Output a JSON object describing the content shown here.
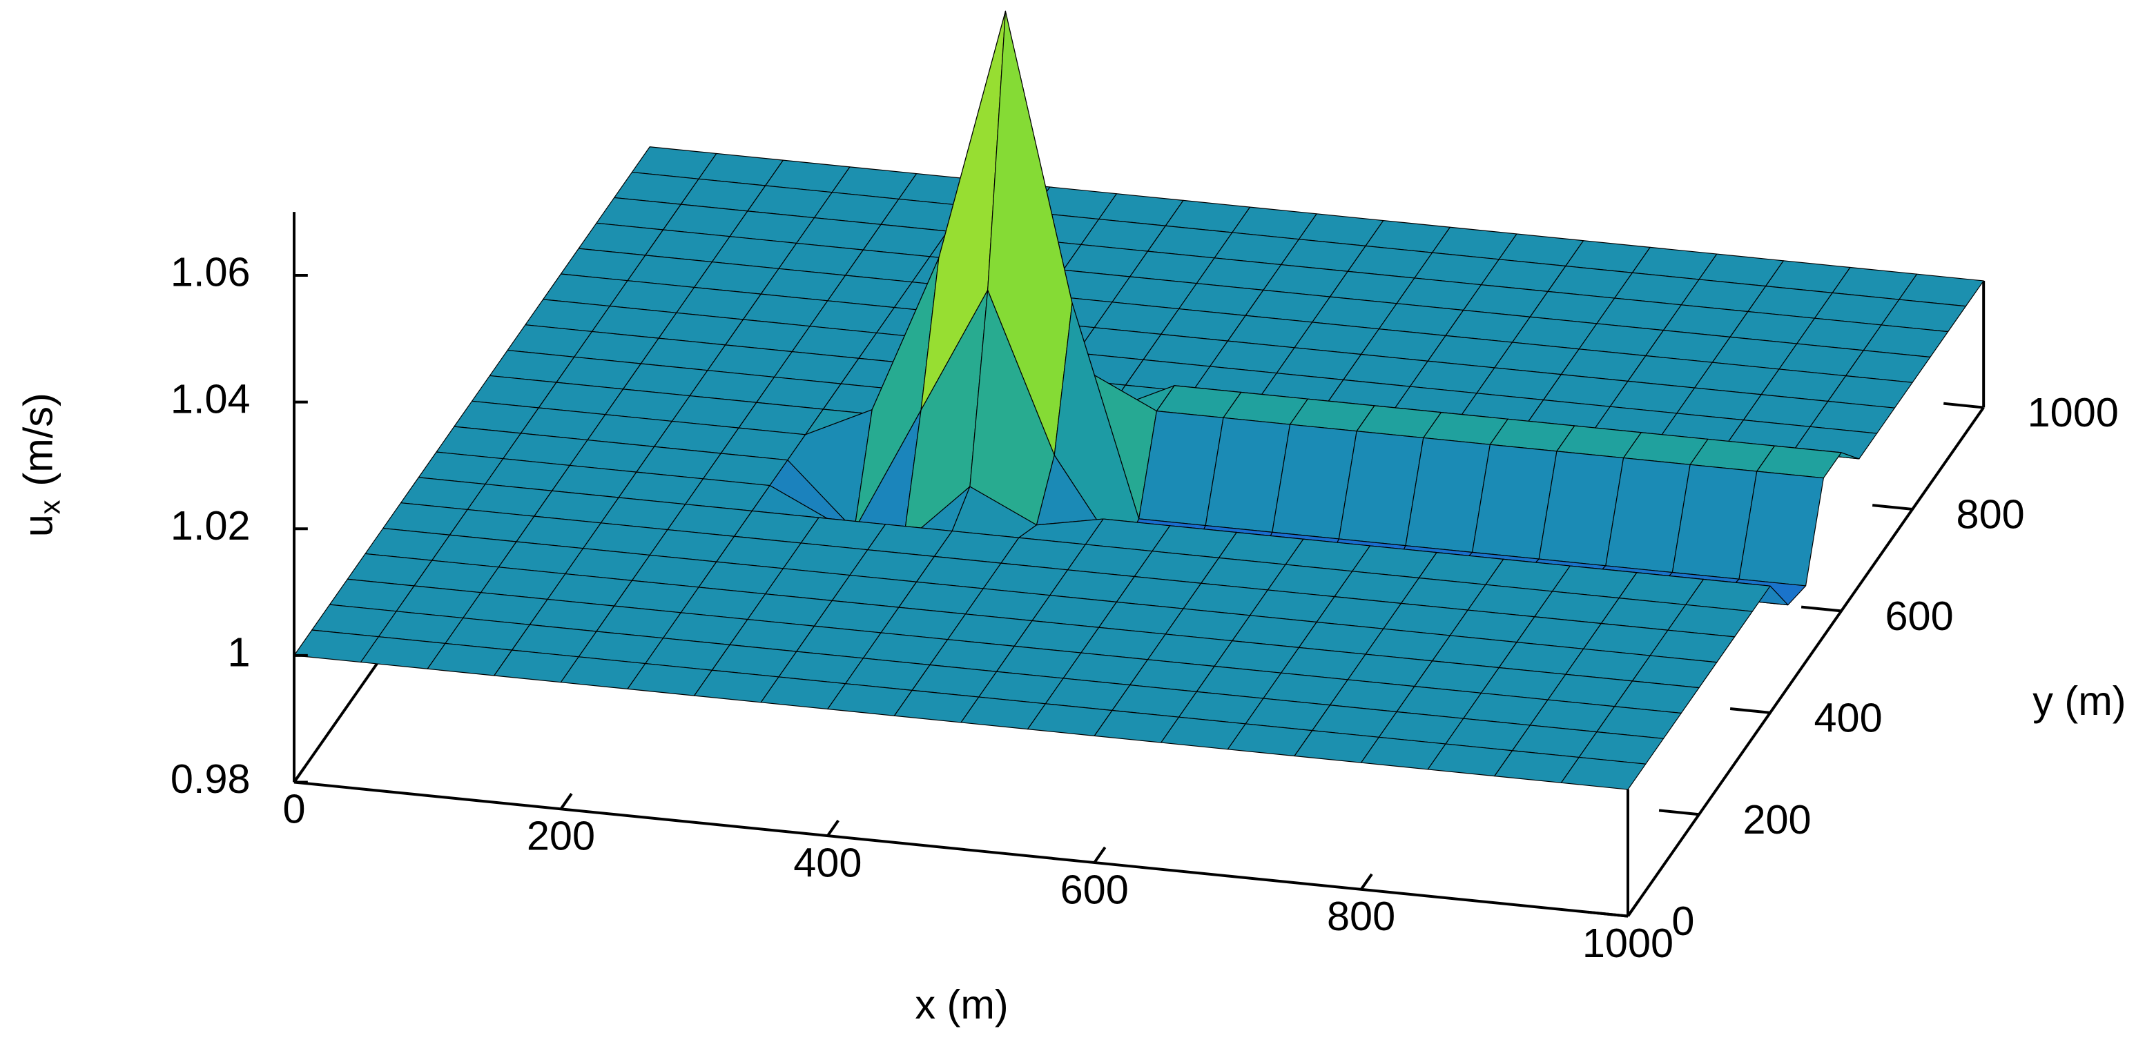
{
  "chart_data": {
    "type": "surface",
    "xlabel": "x (m)",
    "ylabel": "y (m)",
    "zlabel": [
      "u",
      "x",
      "(m/s)"
    ],
    "x": [
      0,
      50,
      100,
      150,
      200,
      250,
      300,
      350,
      400,
      450,
      500,
      550,
      600,
      650,
      700,
      750,
      800,
      850,
      900,
      950,
      1000
    ],
    "y": [
      0,
      50,
      100,
      150,
      200,
      250,
      300,
      350,
      400,
      450,
      500,
      550,
      600,
      650,
      700,
      750,
      800,
      850,
      900,
      950,
      1000
    ],
    "z": [
      [
        1,
        1,
        1,
        1,
        1,
        1,
        1,
        1,
        1,
        1,
        1,
        1,
        1,
        1,
        1,
        1,
        1,
        1,
        1,
        1,
        1
      ],
      [
        1,
        1,
        1,
        1,
        1,
        1,
        1,
        1,
        1,
        1,
        1,
        1,
        1,
        1,
        1,
        1,
        1,
        1,
        1,
        1,
        1
      ],
      [
        1,
        1,
        1,
        1,
        1,
        1,
        1,
        1,
        1,
        1,
        1,
        1,
        1,
        1,
        1,
        1,
        1,
        1,
        1,
        1,
        1
      ],
      [
        1,
        1,
        1,
        1,
        1,
        1,
        1,
        1,
        1,
        1,
        1,
        1,
        1,
        1,
        1,
        1,
        1,
        1,
        1,
        1,
        1
      ],
      [
        1,
        1,
        1,
        1,
        1,
        1,
        1,
        1,
        1,
        1,
        1,
        1,
        1,
        1,
        1,
        1,
        1,
        1,
        1,
        1,
        1
      ],
      [
        1,
        1,
        1,
        1,
        1,
        1,
        1,
        1,
        1,
        1,
        1,
        1,
        1,
        1,
        1,
        1,
        1,
        1,
        1,
        1,
        1
      ],
      [
        1,
        1,
        1,
        1,
        1,
        1,
        1,
        1,
        1,
        1,
        1,
        1,
        1,
        1,
        1,
        1,
        1,
        1,
        1,
        1,
        1
      ],
      [
        1,
        1,
        1,
        1,
        1,
        1,
        1,
        1,
        1,
        1,
        1,
        1,
        1,
        1,
        1,
        1,
        1,
        1,
        1,
        1,
        1
      ],
      [
        1,
        1,
        1,
        1,
        1,
        1,
        0.995,
        0.993,
        1.003,
        0.998,
        1,
        1,
        1,
        1,
        1,
        1,
        1,
        1,
        1,
        1,
        1
      ],
      [
        1,
        1,
        1,
        1,
        1,
        1,
        0.99,
        1.01,
        1.03,
        1.005,
        0.99,
        0.99,
        0.99,
        0.99,
        0.99,
        0.993,
        0.993,
        0.993,
        0.993,
        0.993,
        0.993
      ],
      [
        1,
        1,
        1,
        1,
        1,
        1,
        1.005,
        1.03,
        1.07,
        1.025,
        0.992,
        0.992,
        0.992,
        0.992,
        0.992,
        0.992,
        0.992,
        0.992,
        0.992,
        0.992,
        0.992
      ],
      [
        1,
        1,
        1,
        1,
        1,
        1,
        1,
        1.012,
        1.03,
        1.01,
        1.005,
        1.005,
        1.005,
        1.005,
        1.005,
        1.005,
        1.005,
        1.005,
        1.005,
        1.005,
        1.005
      ],
      [
        1,
        1,
        1,
        1,
        1,
        1,
        1,
        1,
        1.005,
        1,
        1.005,
        1.005,
        1.005,
        1.005,
        1.005,
        1.005,
        1.005,
        1.005,
        1.005,
        1.005,
        1.005
      ],
      [
        1,
        1,
        1,
        1,
        1,
        1,
        1,
        1,
        1,
        1,
        1,
        1,
        1,
        1,
        1,
        1,
        1,
        1,
        1,
        1,
        1
      ],
      [
        1,
        1,
        1,
        1,
        1,
        1,
        1,
        1,
        1,
        1,
        1,
        1,
        1,
        1,
        1,
        1,
        1,
        1,
        1,
        1,
        1
      ],
      [
        1,
        1,
        1,
        1,
        1,
        1,
        1,
        1,
        1,
        1,
        1,
        1,
        1,
        1,
        1,
        1,
        1,
        1,
        1,
        1,
        1
      ],
      [
        1,
        1,
        1,
        1,
        1,
        1,
        1,
        1,
        1,
        1,
        1,
        1,
        1,
        1,
        1,
        1,
        1,
        1,
        1,
        1,
        1
      ],
      [
        1,
        1,
        1,
        1,
        1,
        1,
        1,
        1,
        1,
        1,
        1,
        1,
        1,
        1,
        1,
        1,
        1,
        1,
        1,
        1,
        1
      ],
      [
        1,
        1,
        1,
        1,
        1,
        1,
        1,
        1,
        1,
        1,
        1,
        1,
        1,
        1,
        1,
        1,
        1,
        1,
        1,
        1,
        1
      ],
      [
        1,
        1,
        1,
        1,
        1,
        1,
        1,
        1,
        1,
        1,
        1,
        1,
        1,
        1,
        1,
        1,
        1,
        1,
        1,
        1,
        1
      ],
      [
        1,
        1,
        1,
        1,
        1,
        1,
        1,
        1,
        1,
        1,
        1,
        1,
        1,
        1,
        1,
        1,
        1,
        1,
        1,
        1,
        1
      ]
    ],
    "xlim": [
      0,
      1000
    ],
    "ylim": [
      0,
      1000
    ],
    "zlim": [
      0.98,
      1.07
    ],
    "xticks": [
      0,
      200,
      400,
      600,
      800,
      1000
    ],
    "yticks": [
      0,
      200,
      400,
      600,
      800,
      1000
    ],
    "zticks": [
      0.98,
      1,
      1.02,
      1.04,
      1.06
    ],
    "colormap": [
      "#1030e0",
      "#1a6fd0",
      "#1c9aa6",
      "#30b880",
      "#50d040",
      "#a0e030",
      "#f0e020",
      "#f07010",
      "#e01010"
    ],
    "mesh_color": "#000000"
  }
}
